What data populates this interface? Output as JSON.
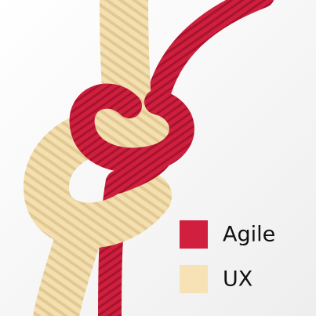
{
  "legend": [
    {
      "label": "Agile",
      "color": "#d1203f"
    },
    {
      "label": "UX",
      "color": "#f6e2b4"
    }
  ]
}
